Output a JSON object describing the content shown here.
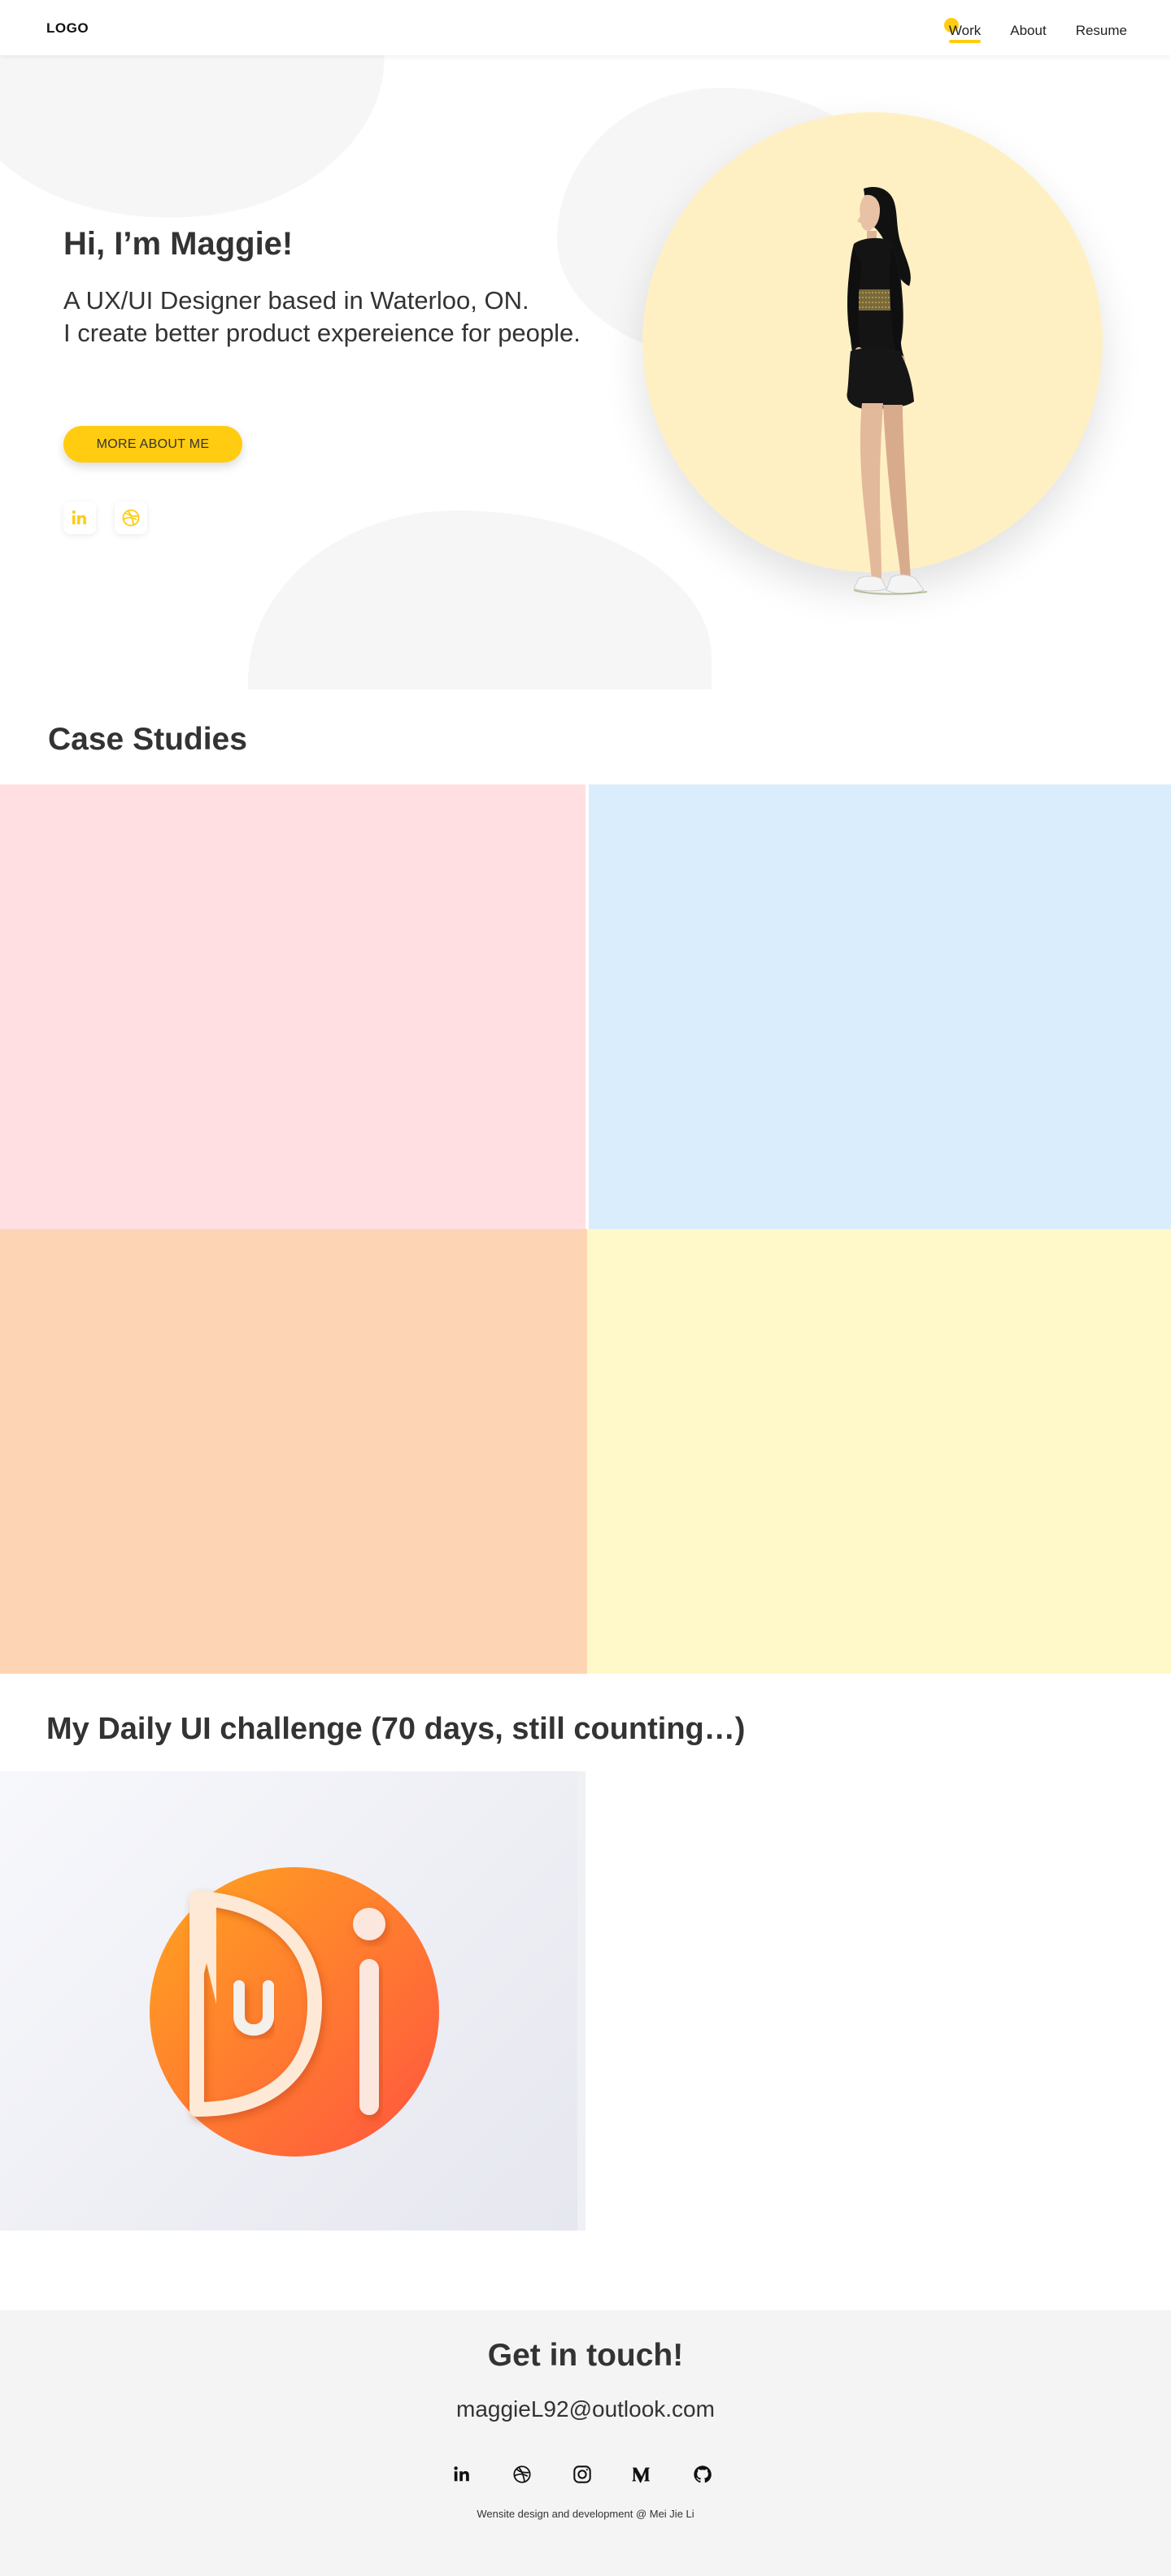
{
  "nav": {
    "logo": "LOGO",
    "links": [
      {
        "label": "Work",
        "active": true
      },
      {
        "label": "About",
        "active": false
      },
      {
        "label": "Resume",
        "active": false
      }
    ]
  },
  "hero": {
    "title": "Hi, I’m Maggie!",
    "subtitle_line1": "A UX/UI Designer based in Waterloo, ON.",
    "subtitle_line2": "I create better product expereience for people.",
    "cta_label": "MORE ABOUT ME",
    "social": [
      {
        "icon": "linkedin-icon"
      },
      {
        "icon": "dribbble-icon"
      }
    ],
    "accent_color": "#ffcc11",
    "circle_color": "#fff0c4"
  },
  "case_studies": {
    "title": "Case Studies",
    "tiles": [
      {
        "color": "#ffdfe2"
      },
      {
        "color": "#daedfc"
      },
      {
        "color": "#fed5b4"
      },
      {
        "color": "#fff8c9"
      }
    ]
  },
  "daily_ui": {
    "title": "My Daily UI challenge (70 days, still counting…)",
    "logo_letters": "DUI"
  },
  "footer": {
    "title": "Get in touch!",
    "email": "maggieL92@outlook.com",
    "icons": [
      "linkedin-icon",
      "dribbble-icon",
      "instagram-icon",
      "medium-icon",
      "github-icon"
    ],
    "credit": "Wensite design and development @ Mei Jie Li"
  }
}
